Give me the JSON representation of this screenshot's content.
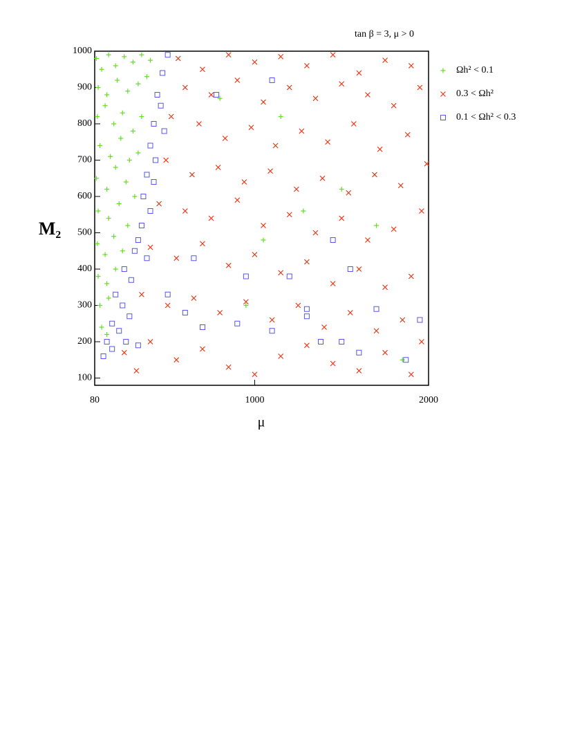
{
  "chart_data": {
    "type": "scatter",
    "subtitle": "tan β = 3, μ > 0",
    "xlabel": "μ",
    "ylabel": "M₂",
    "xlim": [
      80,
      2000
    ],
    "xticks": [
      80,
      1000,
      2000
    ],
    "ylim": [
      80,
      1000
    ],
    "yticks": [
      100,
      200,
      300,
      400,
      500,
      600,
      700,
      800,
      900,
      1000
    ],
    "grid": false,
    "legend": "outside-right",
    "series": [
      {
        "name": "Ωh² < 0.1",
        "color": "#66dd22",
        "marker": "plus",
        "x": [
          90,
          120,
          160,
          200,
          250,
          300,
          350,
          400,
          100,
          150,
          210,
          270,
          330,
          380,
          95,
          140,
          190,
          240,
          300,
          350,
          110,
          170,
          230,
          280,
          330,
          90,
          150,
          200,
          260,
          310,
          100,
          160,
          220,
          270,
          95,
          140,
          190,
          240,
          100,
          150,
          200,
          110,
          160,
          120,
          150,
          800,
          1150,
          1500,
          1280,
          1700,
          950,
          1850,
          1050
        ],
        "values": [
          980,
          950,
          990,
          960,
          985,
          970,
          990,
          975,
          900,
          880,
          920,
          890,
          910,
          930,
          820,
          850,
          800,
          830,
          780,
          820,
          740,
          710,
          760,
          700,
          720,
          650,
          620,
          680,
          640,
          600,
          560,
          540,
          580,
          520,
          470,
          440,
          490,
          450,
          380,
          360,
          400,
          300,
          320,
          240,
          220,
          870,
          820,
          620,
          560,
          520,
          300,
          150,
          480
        ]
      },
      {
        "name": "0.3 < Ωh²",
        "color": "#ee3311",
        "marker": "cross",
        "x": [
          560,
          700,
          850,
          1000,
          1150,
          1300,
          1450,
          1600,
          1750,
          1900,
          600,
          750,
          900,
          1050,
          1200,
          1350,
          1500,
          1650,
          1800,
          1950,
          520,
          680,
          830,
          980,
          1120,
          1270,
          1420,
          1570,
          1720,
          1880,
          490,
          640,
          790,
          940,
          1090,
          1240,
          1390,
          1540,
          1690,
          1840,
          1990,
          450,
          600,
          750,
          900,
          1050,
          1200,
          1350,
          1500,
          1650,
          1800,
          1960,
          400,
          550,
          700,
          850,
          1000,
          1150,
          1300,
          1450,
          1600,
          1750,
          1900,
          350,
          500,
          650,
          800,
          950,
          1100,
          1250,
          1400,
          1550,
          1700,
          1850,
          250,
          400,
          550,
          700,
          850,
          1000,
          1150,
          1300,
          1450,
          1600,
          1750,
          1900,
          320,
          1960
        ],
        "values": [
          980,
          950,
          990,
          970,
          985,
          960,
          990,
          940,
          975,
          960,
          900,
          880,
          920,
          860,
          900,
          870,
          910,
          880,
          850,
          900,
          820,
          800,
          760,
          790,
          740,
          780,
          750,
          800,
          730,
          770,
          700,
          660,
          680,
          640,
          670,
          620,
          650,
          610,
          660,
          630,
          690,
          580,
          560,
          540,
          590,
          520,
          550,
          500,
          540,
          480,
          510,
          560,
          460,
          430,
          470,
          410,
          440,
          390,
          420,
          360,
          400,
          350,
          380,
          330,
          300,
          320,
          280,
          310,
          260,
          300,
          240,
          280,
          230,
          260,
          170,
          200,
          150,
          180,
          130,
          110,
          160,
          190,
          140,
          120,
          170,
          110,
          120,
          200
        ]
      },
      {
        "name": "0.1 < Ωh² < 0.3",
        "color": "#5555ee",
        "marker": "square",
        "x": [
          500,
          470,
          440,
          460,
          420,
          480,
          400,
          430,
          380,
          420,
          360,
          400,
          350,
          330,
          310,
          380,
          250,
          290,
          200,
          240,
          280,
          180,
          220,
          150,
          180,
          130,
          260,
          330,
          600,
          700,
          900,
          1100,
          1300,
          1500,
          1700,
          1950,
          1200,
          1550,
          950,
          1100,
          780,
          1380,
          1600,
          1870,
          500,
          650,
          1450,
          1300
        ],
        "values": [
          990,
          940,
          880,
          850,
          800,
          780,
          740,
          700,
          660,
          640,
          600,
          560,
          520,
          480,
          450,
          430,
          400,
          370,
          330,
          300,
          270,
          250,
          230,
          200,
          180,
          160,
          200,
          190,
          280,
          240,
          250,
          230,
          270,
          200,
          290,
          260,
          380,
          400,
          380,
          920,
          880,
          200,
          170,
          150,
          330,
          430,
          480,
          290
        ]
      }
    ]
  }
}
